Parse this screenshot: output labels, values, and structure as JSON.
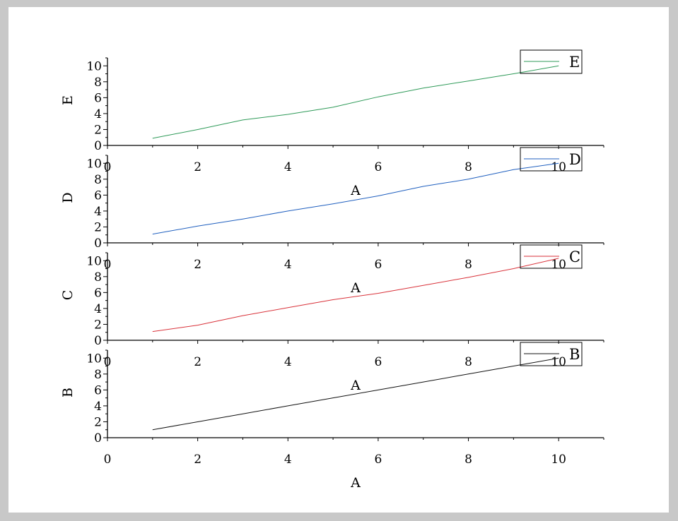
{
  "chart_data": [
    {
      "type": "line",
      "xlabel": "A",
      "ylabel": "E",
      "xlim": [
        0,
        11
      ],
      "ylim": [
        0,
        11
      ],
      "xticks": [
        0,
        2,
        4,
        6,
        8,
        10
      ],
      "yticks": [
        0,
        2,
        4,
        6,
        8,
        10
      ],
      "legend_position": "top-right",
      "series": [
        {
          "name": "E",
          "color": "#2e9a58",
          "x": [
            1,
            2,
            3,
            4,
            5,
            6,
            7,
            8,
            9,
            10
          ],
          "y": [
            0.9,
            2.0,
            3.2,
            3.9,
            4.8,
            6.1,
            7.2,
            8.1,
            9.0,
            10.0
          ]
        }
      ]
    },
    {
      "type": "line",
      "xlabel": "A",
      "ylabel": "D",
      "xlim": [
        0,
        11
      ],
      "ylim": [
        0,
        11
      ],
      "xticks": [
        0,
        2,
        4,
        6,
        8,
        10
      ],
      "yticks": [
        0,
        2,
        4,
        6,
        8,
        10
      ],
      "legend_position": "top-right",
      "series": [
        {
          "name": "D",
          "color": "#1f5fbf",
          "x": [
            1,
            2,
            3,
            4,
            5,
            6,
            7,
            8,
            9,
            10
          ],
          "y": [
            1.1,
            2.1,
            3.0,
            4.0,
            4.9,
            5.9,
            7.1,
            8.0,
            9.2,
            10.0
          ]
        }
      ]
    },
    {
      "type": "line",
      "xlabel": "A",
      "ylabel": "C",
      "xlim": [
        0,
        11
      ],
      "ylim": [
        0,
        11
      ],
      "xticks": [
        0,
        2,
        4,
        6,
        8,
        10
      ],
      "yticks": [
        0,
        2,
        4,
        6,
        8,
        10
      ],
      "legend_position": "top-right",
      "series": [
        {
          "name": "C",
          "color": "#d9323a",
          "x": [
            1,
            2,
            3,
            4,
            5,
            6,
            7,
            8,
            9,
            10
          ],
          "y": [
            1.1,
            1.9,
            3.1,
            4.1,
            5.1,
            5.9,
            6.9,
            7.9,
            9.0,
            10.3
          ]
        }
      ]
    },
    {
      "type": "line",
      "xlabel": "A",
      "ylabel": "B",
      "xlim": [
        0,
        11
      ],
      "ylim": [
        0,
        11
      ],
      "xticks": [
        0,
        2,
        4,
        6,
        8,
        10
      ],
      "yticks": [
        0,
        2,
        4,
        6,
        8,
        10
      ],
      "legend_position": "top-right",
      "series": [
        {
          "name": "B",
          "color": "#111111",
          "x": [
            1,
            2,
            3,
            4,
            5,
            6,
            7,
            8,
            9,
            10
          ],
          "y": [
            1,
            2,
            3,
            4,
            5,
            6,
            7,
            8,
            9,
            10
          ]
        }
      ]
    }
  ]
}
